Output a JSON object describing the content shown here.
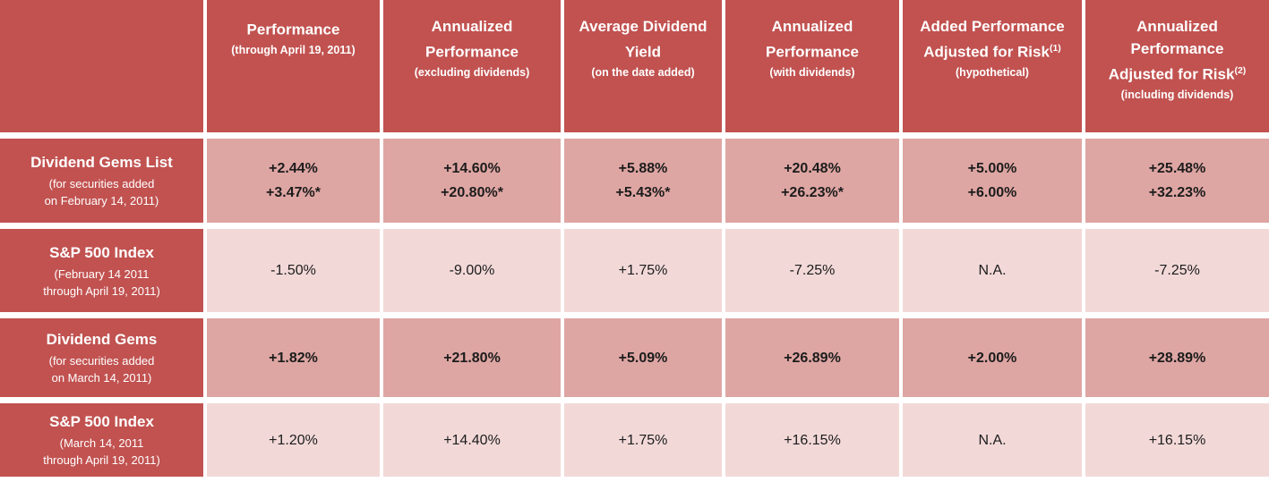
{
  "colors": {
    "header_red": "#c15250",
    "row_pink_dark": "#dea6a3",
    "row_pink_light": "#f2d9d8",
    "divider_white": "#ffffff",
    "value_text": "#1c1c1c",
    "header_text": "#ffffff"
  },
  "chart_data": {
    "type": "table",
    "corner_label": "",
    "columns": [
      {
        "title": "Performance",
        "sup": "",
        "subtitle": "(through April 19, 2011)"
      },
      {
        "title": "Annualized Performance",
        "sup": "",
        "subtitle": "(excluding dividends)"
      },
      {
        "title": "Average Dividend Yield",
        "sup": "",
        "subtitle": "(on the date added)"
      },
      {
        "title": "Annualized Performance",
        "sup": "",
        "subtitle": "(with dividends)"
      },
      {
        "title": "Added Performance Adjusted for Risk",
        "sup": "(1)",
        "subtitle": "(hypothetical)"
      },
      {
        "title": "Annualized Performance Adjusted for Risk",
        "sup": "(2)",
        "subtitle": "(including dividends)"
      }
    ],
    "rows": [
      {
        "label": "Dividend Gems List",
        "sublabel": "(for securities added\non February 14, 2011)",
        "shade": "dark",
        "emphasis": true,
        "values": [
          [
            "+2.44%",
            "+3.47%*"
          ],
          [
            "+14.60%",
            "+20.80%*"
          ],
          [
            "+5.88%",
            "+5.43%*"
          ],
          [
            "+20.48%",
            "+26.23%*"
          ],
          [
            "+5.00%",
            "+6.00%"
          ],
          [
            "+25.48%",
            "+32.23%"
          ]
        ]
      },
      {
        "label": "S&P 500 Index",
        "sublabel": "(February 14 2011\nthrough April 19, 2011)",
        "shade": "light",
        "emphasis": false,
        "values": [
          [
            "-1.50%"
          ],
          [
            "-9.00%"
          ],
          [
            "+1.75%"
          ],
          [
            "-7.25%"
          ],
          [
            "N.A."
          ],
          [
            "-7.25%"
          ]
        ]
      },
      {
        "label": "Dividend Gems",
        "sublabel": "(for securities added\non March 14, 2011)",
        "shade": "dark",
        "emphasis": true,
        "values": [
          [
            "+1.82%"
          ],
          [
            "+21.80%"
          ],
          [
            "+5.09%"
          ],
          [
            "+26.89%"
          ],
          [
            "+2.00%"
          ],
          [
            "+28.89%"
          ]
        ]
      },
      {
        "label": "S&P 500 Index",
        "sublabel": "(March 14, 2011\nthrough April 19, 2011)",
        "shade": "light",
        "emphasis": false,
        "values": [
          [
            "+1.20%"
          ],
          [
            "+14.40%"
          ],
          [
            "+1.75%"
          ],
          [
            "+16.15%"
          ],
          [
            "N.A."
          ],
          [
            "+16.15%"
          ]
        ]
      }
    ]
  }
}
